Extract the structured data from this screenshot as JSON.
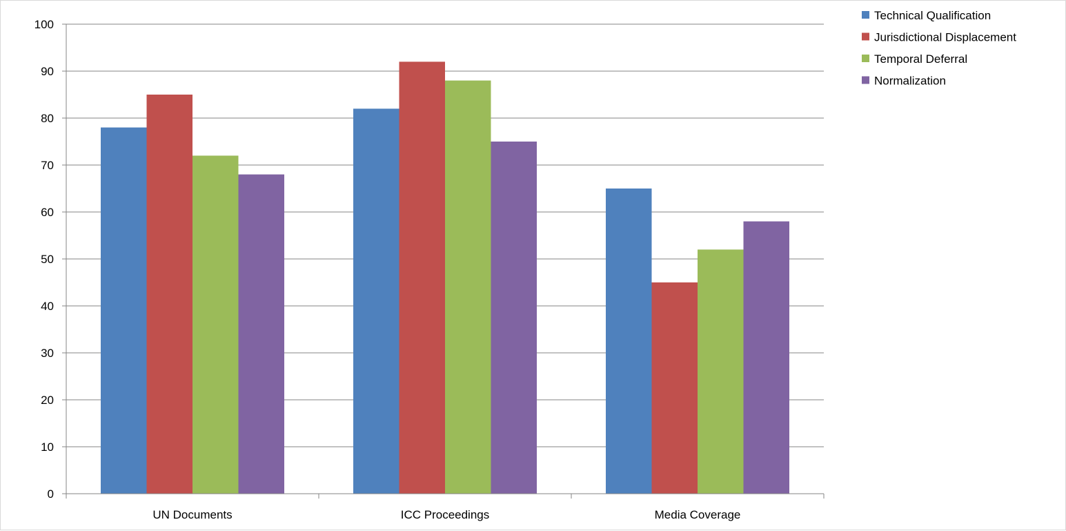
{
  "chart_data": {
    "type": "bar",
    "title": "",
    "xlabel": "",
    "ylabel": "",
    "categories": [
      "UN Documents",
      "ICC Proceedings",
      "Media Coverage"
    ],
    "series": [
      {
        "name": "Technical Qualification",
        "color": "#4F81BD",
        "values": [
          78,
          82,
          65
        ]
      },
      {
        "name": "Jurisdictional Displacement",
        "color": "#C0504D",
        "values": [
          85,
          92,
          45
        ]
      },
      {
        "name": "Temporal Deferral",
        "color": "#9BBB59",
        "values": [
          72,
          88,
          52
        ]
      },
      {
        "name": "Normalization",
        "color": "#8064A2",
        "values": [
          68,
          75,
          58
        ]
      }
    ],
    "ylim": [
      0,
      100
    ],
    "yticks": [
      0,
      10,
      20,
      30,
      40,
      50,
      60,
      70,
      80,
      90,
      100
    ],
    "grid": true,
    "legend_position": "top-right"
  }
}
